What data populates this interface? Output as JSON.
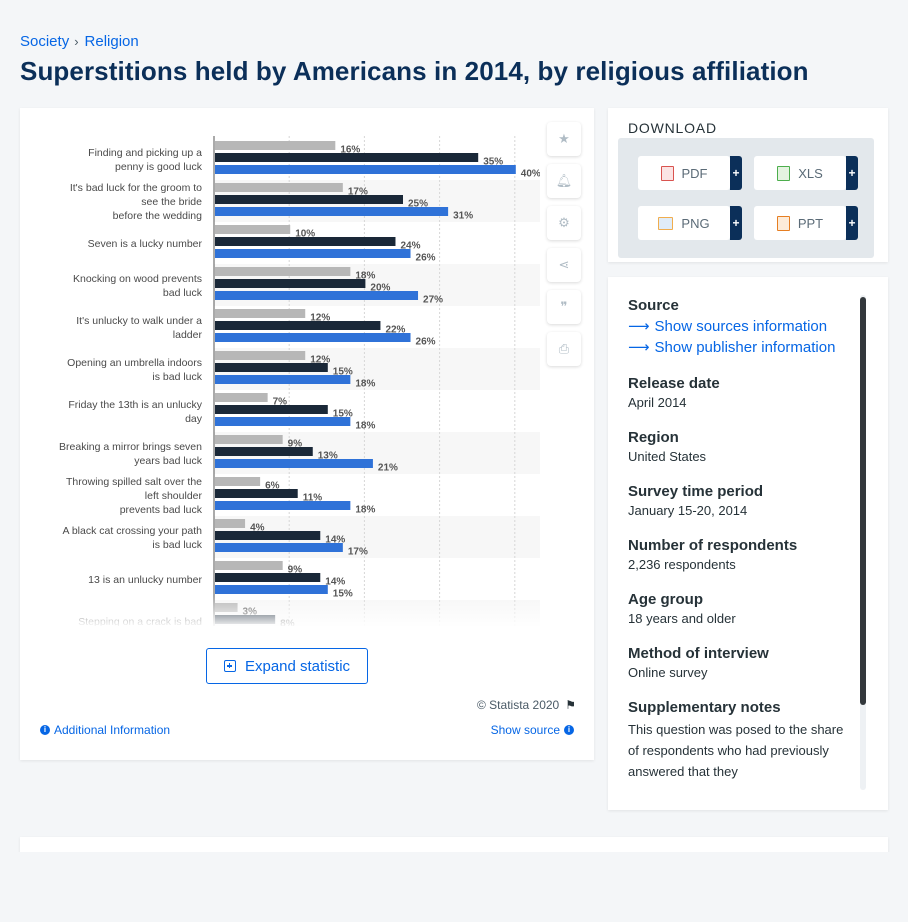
{
  "breadcrumb": {
    "items": [
      "Society",
      "Religion"
    ]
  },
  "page_title": "Superstitions held by Americans in 2014, by religious affiliation",
  "chart_data": {
    "type": "bar",
    "orientation": "horizontal",
    "categories": [
      [
        "Finding and picking up a",
        "penny is good luck"
      ],
      [
        "It's bad luck for the groom to",
        "see the bride",
        "before the wedding"
      ],
      [
        "Seven is a lucky number"
      ],
      [
        "Knocking on wood prevents",
        "bad luck"
      ],
      [
        "It's unlucky to walk under a",
        "ladder"
      ],
      [
        "Opening an umbrella indoors",
        "is bad luck"
      ],
      [
        "Friday the 13th is an unlucky",
        "day"
      ],
      [
        "Breaking a mirror brings seven",
        "years bad luck"
      ],
      [
        "Throwing spilled salt over the",
        "left shoulder",
        "prevents bad luck"
      ],
      [
        "A black cat crossing your path",
        "is bad luck"
      ],
      [
        "13 is an unlucky number"
      ],
      [
        "Stepping on a crack is bad"
      ]
    ],
    "series": [
      {
        "color": "#b7b7b7",
        "values": [
          16,
          17,
          10,
          18,
          12,
          12,
          7,
          9,
          6,
          4,
          9,
          3
        ]
      },
      {
        "color": "#1a2838",
        "values": [
          35,
          25,
          24,
          20,
          22,
          15,
          15,
          13,
          11,
          14,
          14,
          8
        ]
      },
      {
        "color": "#2f72d8",
        "values": [
          40,
          31,
          26,
          27,
          26,
          18,
          18,
          21,
          18,
          17,
          15,
          null
        ]
      }
    ],
    "value_suffix": "%",
    "xlim": [
      0,
      50
    ],
    "grid": true
  },
  "chart_footer": {
    "expand_label": "Expand statistic",
    "copyright": "© Statista 2020",
    "additional_info": "Additional Information",
    "show_source": "Show source"
  },
  "toolbar": {
    "icons": [
      "star-icon",
      "bell-icon",
      "gear-icon",
      "share-icon",
      "quote-icon",
      "print-icon"
    ]
  },
  "download": {
    "title": "DOWNLOAD",
    "formats": [
      "PDF",
      "XLS",
      "PNG",
      "PPT"
    ],
    "plus": "+"
  },
  "info": {
    "source_heading": "Source",
    "show_sources": "Show sources information",
    "show_publisher": "Show publisher information",
    "release_date_label": "Release date",
    "release_date": "April 2014",
    "region_label": "Region",
    "region": "United States",
    "survey_period_label": "Survey time period",
    "survey_period": "January 15-20, 2014",
    "respondents_label": "Number of respondents",
    "respondents": "2,236 respondents",
    "age_group_label": "Age group",
    "age_group": "18 years and older",
    "method_label": "Method of interview",
    "method": "Online survey",
    "notes_label": "Supplementary notes",
    "notes": "This question was posed to the share of respondents who had previously answered that they"
  }
}
